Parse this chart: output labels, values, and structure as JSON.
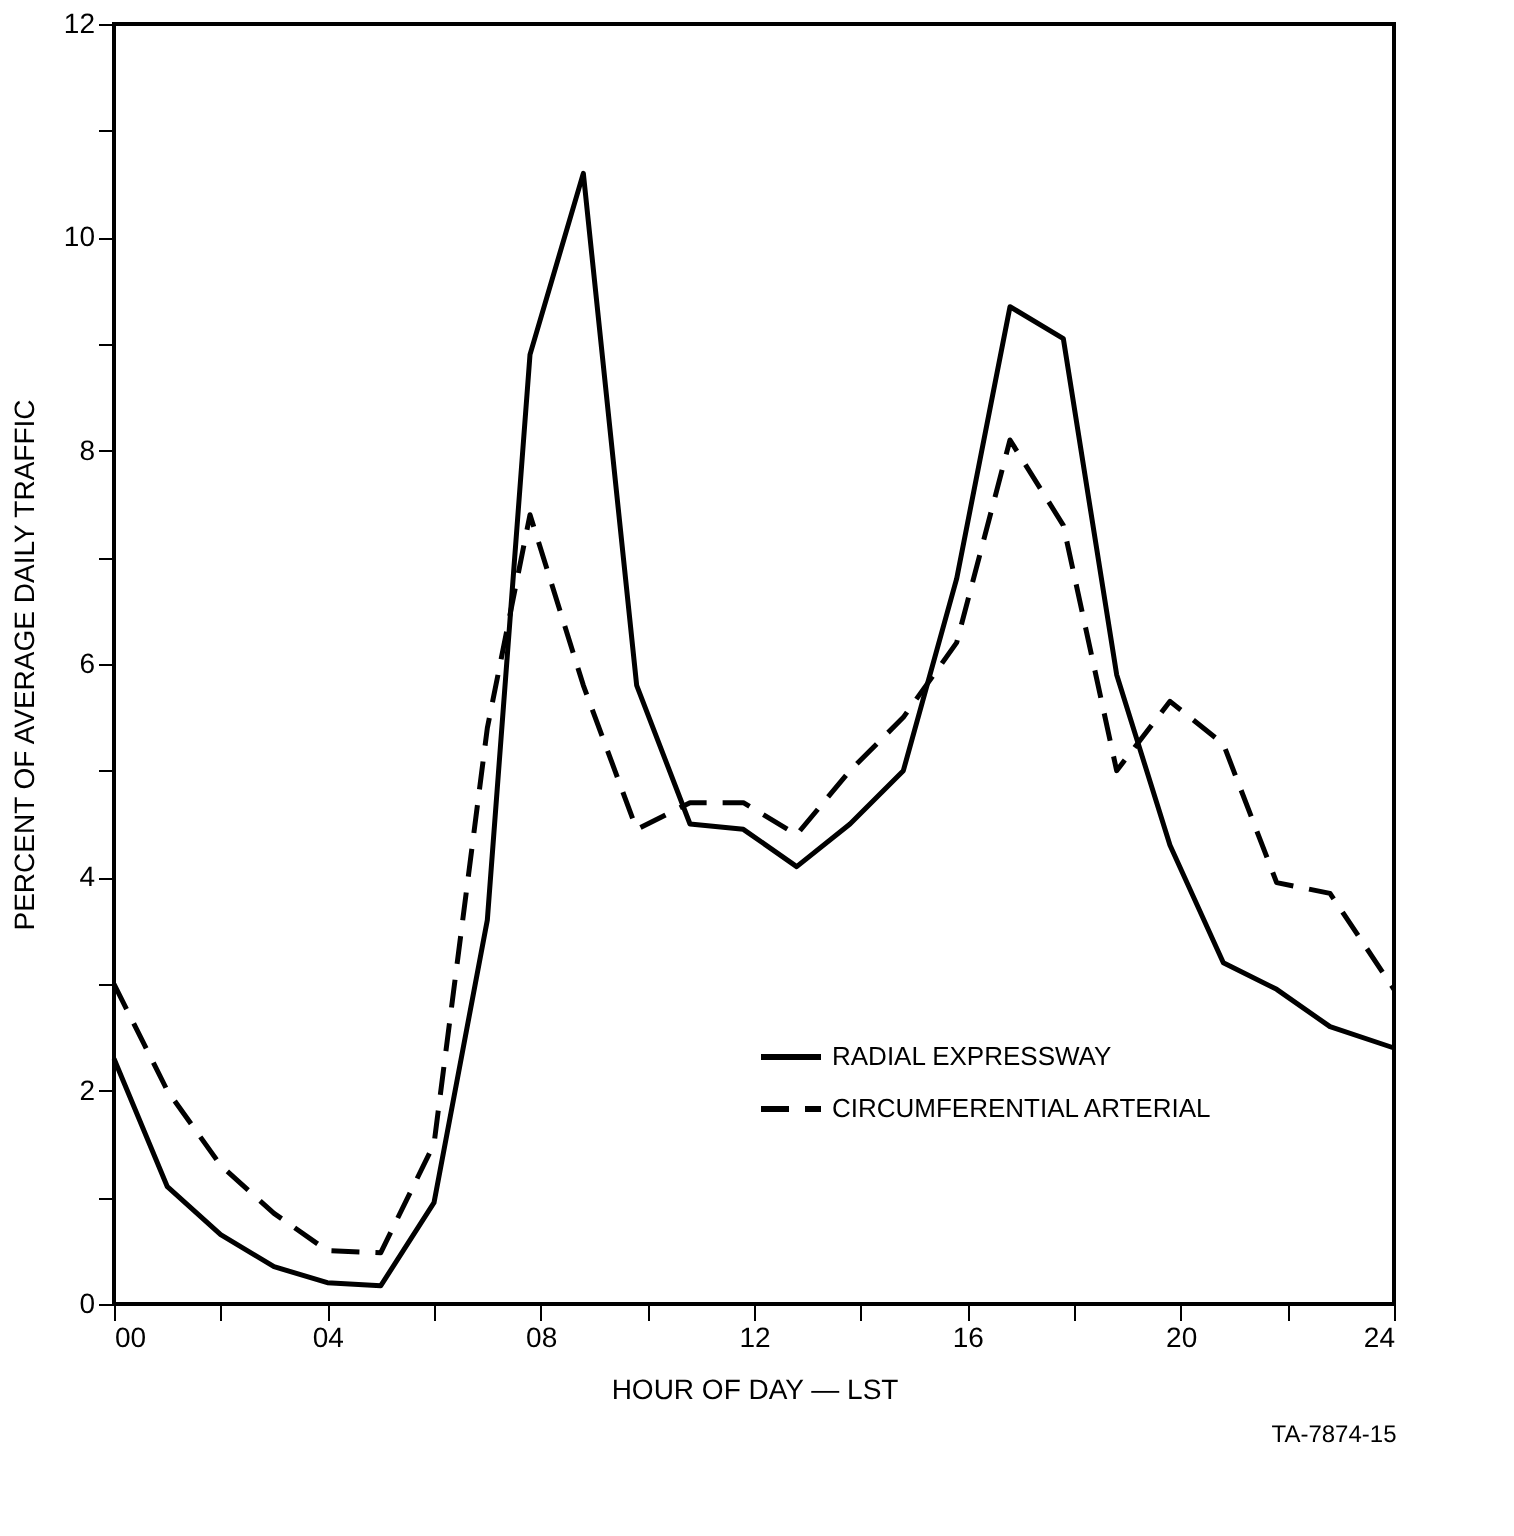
{
  "chart_data": {
    "type": "line",
    "xlabel": "HOUR OF DAY — LST",
    "ylabel": "PERCENT OF AVERAGE DAILY TRAFFIC",
    "annotations": [
      "TA-7874-15"
    ],
    "xlim": [
      0,
      24
    ],
    "xticks": [
      {
        "value": 0,
        "label": "00"
      },
      {
        "value": 2,
        "label": null
      },
      {
        "value": 4,
        "label": "04"
      },
      {
        "value": 6,
        "label": null
      },
      {
        "value": 8,
        "label": "08"
      },
      {
        "value": 10,
        "label": null
      },
      {
        "value": 12,
        "label": "12"
      },
      {
        "value": 14,
        "label": null
      },
      {
        "value": 16,
        "label": "16"
      },
      {
        "value": 18,
        "label": null
      },
      {
        "value": 20,
        "label": "20"
      },
      {
        "value": 22,
        "label": null
      },
      {
        "value": 24,
        "label": "24"
      }
    ],
    "ylim": [
      0,
      12
    ],
    "yticks": [
      0,
      {
        "value": 1,
        "label": null
      },
      2,
      {
        "value": 3,
        "label": null
      },
      4,
      {
        "value": 5,
        "label": null
      },
      6,
      {
        "value": 7,
        "label": null
      },
      8,
      {
        "value": 9,
        "label": null
      },
      10,
      {
        "value": 11,
        "label": null
      },
      12
    ],
    "grid": false,
    "legend": "bottom right",
    "marker": "none",
    "series": [
      {
        "name": "RADIAL EXPRESSWAY",
        "color": "#000000",
        "line_style": "solid",
        "x": [
          0,
          1,
          2,
          3,
          4,
          5,
          6,
          7,
          7.8,
          8.8,
          9.8,
          10.8,
          11.8,
          12.8,
          13.8,
          14.8,
          15.8,
          16.8,
          17.8,
          18.8,
          19.8,
          20.8,
          21.8,
          22.8,
          24
        ],
        "values": [
          2.3,
          1.1,
          0.65,
          0.35,
          0.2,
          0.17,
          0.95,
          3.6,
          8.9,
          10.6,
          5.8,
          4.5,
          4.45,
          4.1,
          4.5,
          5.0,
          6.8,
          9.35,
          9.05,
          5.9,
          4.3,
          3.2,
          2.95,
          2.6,
          2.4
        ]
      },
      {
        "name": "CIRCUMFERENTIAL ARTERIAL",
        "color": "#000000",
        "line_style": "dashed",
        "x": [
          0,
          1,
          2,
          3,
          4,
          5,
          6,
          7,
          7.8,
          8.8,
          9.8,
          10.8,
          11.8,
          12.8,
          13.8,
          14.8,
          15.8,
          16.8,
          17.8,
          18.8,
          19.8,
          20.8,
          21.8,
          22.8,
          24
        ],
        "values": [
          3.0,
          2.0,
          1.3,
          0.85,
          0.5,
          0.48,
          1.5,
          5.4,
          7.4,
          5.8,
          4.45,
          4.7,
          4.7,
          4.4,
          5.0,
          5.5,
          6.2,
          8.1,
          7.3,
          5.0,
          5.65,
          5.25,
          3.95,
          3.85,
          2.95
        ]
      }
    ]
  }
}
